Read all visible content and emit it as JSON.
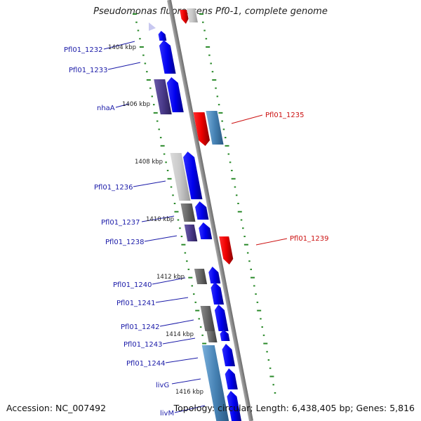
{
  "header": {
    "title": "Pseudomonas fluorescens Pf0-1, complete genome"
  },
  "footer": {
    "accession": "Accession: NC_007492",
    "summary": "Topology: circular; Length: 6,438,405 bp; Genes: 5,816"
  },
  "colors": {
    "backbone": "#8a8a8a",
    "tick": "#2a8a2a",
    "gene_forward": "#0a0aee",
    "gene_reverse": "#ee0a0a",
    "label_forward": "#1a1aa8",
    "label_reverse": "#cc1010",
    "feature_gray": "#c8c8c8",
    "feature_dark": "#6a6a6a",
    "feature_slate": "#4a3a8a",
    "feature_steel": "#4682b4"
  },
  "scale_labels": [
    "1404 kbp",
    "1406 kbp",
    "1408 kbp",
    "1410 kbp",
    "1412 kbp",
    "1414 kbp",
    "1416 kbp"
  ],
  "genes_left": [
    "Pfl01_1232",
    "Pfl01_1233",
    "nhaA",
    "Pfl01_1236",
    "Pfl01_1237",
    "Pfl01_1238",
    "Pfl01_1240",
    "Pfl01_1241",
    "Pfl01_1242",
    "Pfl01_1243",
    "Pfl01_1244",
    "livG",
    "livM"
  ],
  "genes_right": [
    "Pfl01_1235",
    "Pfl01_1239"
  ]
}
